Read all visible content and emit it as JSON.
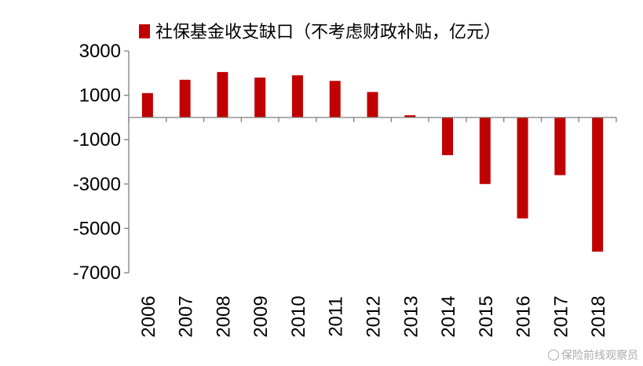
{
  "chart_data": {
    "type": "bar",
    "categories": [
      "2006",
      "2007",
      "2008",
      "2009",
      "2010",
      "2011",
      "2012",
      "2013",
      "2014",
      "2015",
      "2016",
      "2017",
      "2018"
    ],
    "series": [
      {
        "name": "社保基金收支缺口（不考虑财政补贴，亿元）",
        "values": [
          1100,
          1700,
          2050,
          1800,
          1900,
          1650,
          1150,
          100,
          -1700,
          -3000,
          -4550,
          -2600,
          -6050
        ],
        "color": "#C00000"
      }
    ],
    "yticks": [
      "3000",
      "1000",
      "-1000",
      "-3000",
      "-5000",
      "-7000"
    ],
    "ylim": [
      -7000,
      3000
    ],
    "legend_position": "top",
    "grid": false
  },
  "watermark": "保险前线观察员"
}
